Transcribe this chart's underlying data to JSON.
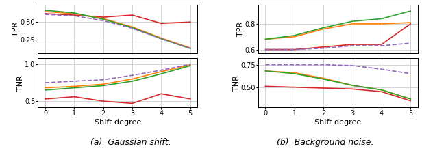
{
  "x": [
    0,
    1,
    2,
    3,
    4,
    5
  ],
  "gaussian_tpr": {
    "red": [
      0.62,
      0.6,
      0.57,
      0.6,
      0.48,
      0.5
    ],
    "orange": [
      0.65,
      0.62,
      0.55,
      0.43,
      0.27,
      0.13
    ],
    "green": [
      0.67,
      0.63,
      0.54,
      0.42,
      0.26,
      0.12
    ],
    "purple": [
      0.61,
      0.59,
      0.52,
      0.41,
      0.26,
      0.12
    ]
  },
  "gaussian_tnr": {
    "red": [
      0.53,
      0.56,
      0.5,
      0.47,
      0.6,
      0.53
    ],
    "orange": [
      0.68,
      0.7,
      0.73,
      0.8,
      0.9,
      0.99
    ],
    "green": [
      0.65,
      0.68,
      0.71,
      0.77,
      0.87,
      0.98
    ],
    "purple": [
      0.75,
      0.77,
      0.79,
      0.85,
      0.92,
      1.0
    ]
  },
  "background_tpr": {
    "red": [
      0.6,
      0.6,
      0.62,
      0.64,
      0.64,
      0.8
    ],
    "orange": [
      0.68,
      0.7,
      0.76,
      0.8,
      0.8,
      0.81
    ],
    "green": [
      0.68,
      0.71,
      0.77,
      0.82,
      0.84,
      0.9
    ],
    "purple": [
      0.6,
      0.6,
      0.61,
      0.63,
      0.63,
      0.65
    ]
  },
  "background_tnr": {
    "red": [
      0.51,
      0.5,
      0.49,
      0.48,
      0.45,
      0.35
    ],
    "orange": [
      0.68,
      0.66,
      0.6,
      0.52,
      0.47,
      0.37
    ],
    "green": [
      0.68,
      0.65,
      0.59,
      0.52,
      0.47,
      0.37
    ],
    "purple": [
      0.75,
      0.75,
      0.75,
      0.74,
      0.7,
      0.65
    ]
  },
  "colors": {
    "red": "#d62728",
    "orange": "#ff7f0e",
    "green": "#2ca02c",
    "purple": "#9467bd"
  },
  "linestyles": {
    "red": "-",
    "orange": "-",
    "green": "-",
    "purple": "--"
  },
  "linewidth": 1.2,
  "gaussian_tpr_ylim": [
    0.05,
    0.75
  ],
  "gaussian_tpr_yticks": [
    0.25,
    0.5
  ],
  "gaussian_tnr_ylim": [
    0.42,
    1.08
  ],
  "gaussian_tnr_yticks": [
    0.5,
    1.0
  ],
  "background_tpr_ylim": [
    0.57,
    0.95
  ],
  "background_tpr_yticks": [
    0.6,
    0.8
  ],
  "background_tnr_ylim": [
    0.28,
    0.82
  ],
  "background_tnr_yticks": [
    0.5,
    0.75
  ],
  "xlabel": "Shift degree",
  "label_tpr": "TPR",
  "label_tnr": "TNR",
  "caption_a": "(a)  Gaussian shift.",
  "caption_b": "(b)  Background noise.",
  "xticks": [
    0,
    1,
    2,
    3,
    4,
    5
  ],
  "grid_color": "#cccccc",
  "grid_linewidth": 0.6
}
